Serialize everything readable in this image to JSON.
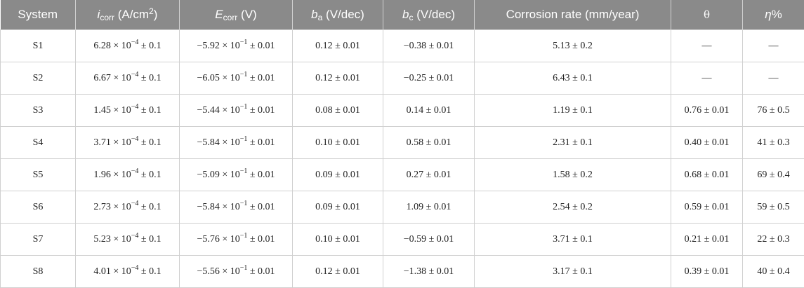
{
  "table": {
    "header": [
      "System",
      {
        "symbol": "i",
        "subscript": "corr",
        "unit": " (A/cm",
        "superscript": "2",
        "close": ")"
      },
      {
        "symbol": "E",
        "subscript": "corr",
        "unit": " (V)"
      },
      {
        "symbol": "b",
        "subscript": "a",
        "unit": " (V/dec)"
      },
      {
        "symbol": "b",
        "subscript": "c",
        "unit": " (V/dec)"
      },
      "Corrosion rate (mm/year)",
      "θ",
      {
        "symbol": "η",
        "unit": "%"
      }
    ],
    "rows": [
      [
        "S1",
        {
          "base": "6.28 × 10",
          "exp": "−4",
          "tail": " ± 0.1"
        },
        {
          "base": "−5.92 × 10",
          "exp": "−1",
          "tail": " ± 0.01"
        },
        "0.12 ± 0.01",
        "−0.38 ± 0.01",
        "5.13 ± 0.2",
        "—",
        "—"
      ],
      [
        "S2",
        {
          "base": "6.67 × 10",
          "exp": "−4",
          "tail": " ± 0.1"
        },
        {
          "base": "−6.05 × 10",
          "exp": "−1",
          "tail": " ± 0.01"
        },
        "0.12 ± 0.01",
        "−0.25 ± 0.01",
        "6.43 ± 0.1",
        "—",
        "—"
      ],
      [
        "S3",
        {
          "base": "1.45 × 10",
          "exp": "−4",
          "tail": " ± 0.1"
        },
        {
          "base": "−5.44 × 10",
          "exp": "−1",
          "tail": " ± 0.01"
        },
        "0.08 ± 0.01",
        "0.14 ± 0.01",
        "1.19 ± 0.1",
        "0.76 ± 0.01",
        "76 ± 0.5"
      ],
      [
        "S4",
        {
          "base": "3.71 × 10",
          "exp": "−4",
          "tail": " ± 0.1"
        },
        {
          "base": "−5.84 × 10",
          "exp": "−1",
          "tail": " ± 0.01"
        },
        "0.10 ± 0.01",
        "0.58 ± 0.01",
        "2.31 ± 0.1",
        "0.40 ± 0.01",
        "41 ± 0.3"
      ],
      [
        "S5",
        {
          "base": "1.96 × 10",
          "exp": "−4",
          "tail": " ± 0.1"
        },
        {
          "base": "−5.09 × 10",
          "exp": "−1",
          "tail": " ± 0.01"
        },
        "0.09 ± 0.01",
        "0.27 ± 0.01",
        "1.58 ± 0.2",
        "0.68 ± 0.01",
        "69 ± 0.4"
      ],
      [
        "S6",
        {
          "base": "2.73 × 10",
          "exp": "−4",
          "tail": " ± 0.1"
        },
        {
          "base": "−5.84 × 10",
          "exp": "−1",
          "tail": " ± 0.01"
        },
        "0.09 ± 0.01",
        "1.09 ± 0.01",
        "2.54 ± 0.2",
        "0.59 ± 0.01",
        "59 ± 0.5"
      ],
      [
        "S7",
        {
          "base": "5.23 × 10",
          "exp": "−4",
          "tail": " ± 0.1"
        },
        {
          "base": "−5.76 × 10",
          "exp": "−1",
          "tail": " ± 0.01"
        },
        "0.10 ± 0.01",
        "−0.59 ± 0.01",
        "3.71 ± 0.1",
        "0.21 ± 0.01",
        "22 ± 0.3"
      ],
      [
        "S8",
        {
          "base": "4.01 × 10",
          "exp": "−4",
          "tail": " ± 0.1"
        },
        {
          "base": "−5.56 × 10",
          "exp": "−1",
          "tail": " ± 0.01"
        },
        "0.12 ± 0.01",
        "−1.38 ± 0.01",
        "3.17 ± 0.1",
        "0.39 ± 0.01",
        "40 ± 0.4"
      ]
    ]
  }
}
